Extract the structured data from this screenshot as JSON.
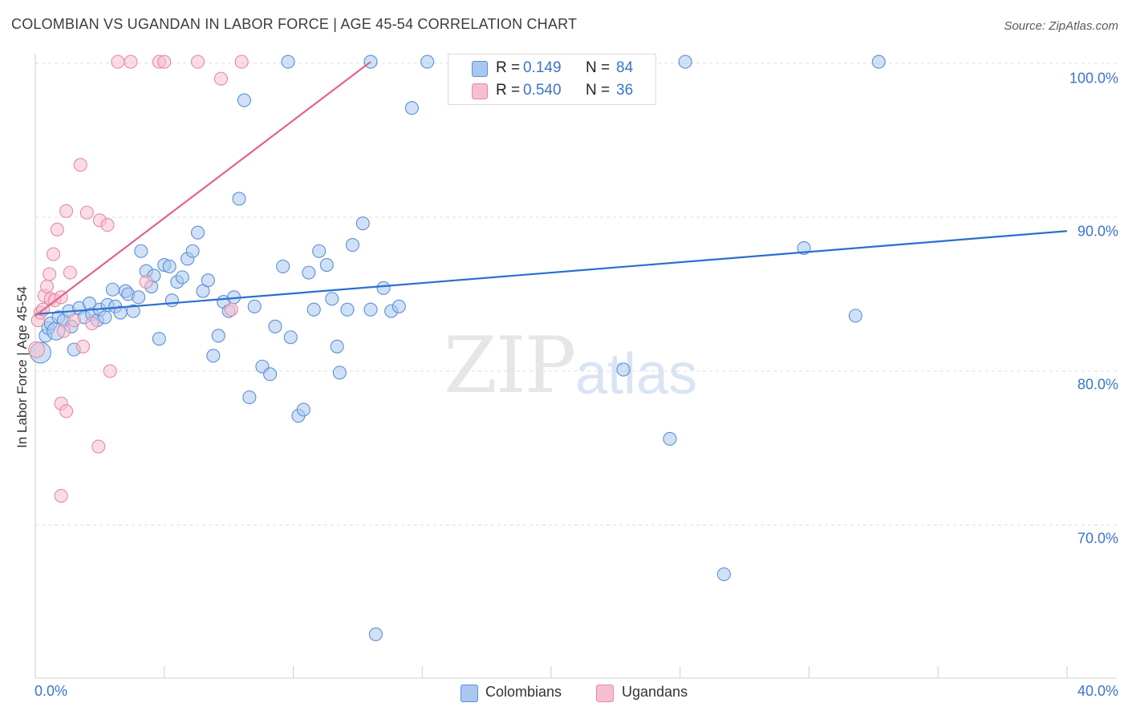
{
  "title": "COLOMBIAN VS UGANDAN IN LABOR FORCE | AGE 45-54 CORRELATION CHART",
  "source": "Source: ZipAtlas.com",
  "watermark": {
    "zip": "ZIP",
    "atlas": "atlas"
  },
  "colors": {
    "blue_fill": "#a9c8ef",
    "blue_stroke": "#5b8fd6",
    "blue_line": "#2b6fcf",
    "pink_fill": "#f6bfcf",
    "pink_stroke": "#e58aa5",
    "pink_line": "#e2628b",
    "grid": "#dedede",
    "tick_text": "#3b74c9"
  },
  "legend_top": [
    {
      "r_label": "R =",
      "r_value": "0.149",
      "n_label": "N =",
      "n_value": "84"
    },
    {
      "r_label": "R =",
      "r_value": "0.540",
      "n_label": "N =",
      "n_value": "36"
    }
  ],
  "legend_bottom": [
    "Colombians",
    "Ugandans"
  ],
  "chart_data": {
    "type": "scatter",
    "title": "COLOMBIAN VS UGANDAN IN LABOR FORCE | AGE 45-54 CORRELATION CHART",
    "xlabel": "",
    "ylabel": "In Labor Force | Age 45-54",
    "xlim": [
      0,
      40
    ],
    "ylim": [
      62,
      101.5
    ],
    "x_tick_labels": [
      "0.0%",
      "40.0%"
    ],
    "y_ticks": [
      70,
      80,
      90,
      100
    ],
    "y_tick_labels": [
      "70.0%",
      "80.0%",
      "90.0%",
      "100.0%"
    ],
    "grid": "horizontal dashed",
    "legend_position": "top-center",
    "series": [
      {
        "name": "Colombians",
        "r": 0.149,
        "n": 84,
        "trend": {
          "x": [
            0,
            40
          ],
          "y": [
            83.7,
            89.1
          ]
        },
        "points": [
          [
            0.2,
            81.2
          ],
          [
            0.4,
            82.3
          ],
          [
            0.5,
            82.8
          ],
          [
            0.6,
            83.1
          ],
          [
            0.8,
            82.6
          ],
          [
            0.9,
            83.5
          ],
          [
            1.1,
            83.3
          ],
          [
            1.3,
            83.9
          ],
          [
            1.4,
            82.9
          ],
          [
            1.5,
            81.4
          ],
          [
            1.7,
            84.1
          ],
          [
            1.9,
            83.5
          ],
          [
            2.1,
            84.4
          ],
          [
            2.2,
            83.7
          ],
          [
            2.4,
            83.3
          ],
          [
            2.5,
            84.0
          ],
          [
            2.7,
            83.5
          ],
          [
            2.8,
            84.3
          ],
          [
            3.0,
            85.3
          ],
          [
            3.1,
            84.2
          ],
          [
            3.3,
            83.8
          ],
          [
            3.5,
            85.2
          ],
          [
            3.6,
            85.0
          ],
          [
            3.8,
            83.9
          ],
          [
            4.0,
            84.8
          ],
          [
            4.1,
            87.8
          ],
          [
            4.3,
            86.5
          ],
          [
            4.5,
            85.5
          ],
          [
            4.6,
            86.2
          ],
          [
            4.8,
            82.1
          ],
          [
            5.0,
            86.9
          ],
          [
            5.2,
            86.8
          ],
          [
            5.3,
            84.6
          ],
          [
            5.5,
            85.8
          ],
          [
            5.7,
            86.1
          ],
          [
            5.9,
            87.3
          ],
          [
            6.1,
            87.8
          ],
          [
            6.3,
            89.0
          ],
          [
            6.5,
            85.2
          ],
          [
            6.7,
            85.9
          ],
          [
            6.9,
            81.0
          ],
          [
            7.1,
            82.3
          ],
          [
            7.3,
            84.5
          ],
          [
            7.5,
            83.9
          ],
          [
            7.7,
            84.8
          ],
          [
            7.9,
            91.2
          ],
          [
            8.1,
            97.6
          ],
          [
            8.3,
            78.3
          ],
          [
            8.5,
            84.2
          ],
          [
            8.8,
            80.3
          ],
          [
            9.1,
            79.8
          ],
          [
            9.3,
            82.9
          ],
          [
            9.6,
            86.8
          ],
          [
            9.9,
            82.2
          ],
          [
            10.2,
            77.1
          ],
          [
            10.4,
            77.5
          ],
          [
            10.6,
            86.4
          ],
          [
            10.8,
            84.0
          ],
          [
            11.0,
            87.8
          ],
          [
            11.3,
            86.9
          ],
          [
            11.5,
            84.7
          ],
          [
            11.7,
            81.6
          ],
          [
            11.8,
            79.9
          ],
          [
            12.1,
            84.0
          ],
          [
            12.3,
            88.2
          ],
          [
            12.7,
            89.6
          ],
          [
            13.0,
            84.0
          ],
          [
            13.2,
            62.9
          ],
          [
            13.5,
            85.4
          ],
          [
            13.8,
            83.9
          ],
          [
            14.1,
            84.2
          ],
          [
            14.6,
            97.1
          ],
          [
            9.8,
            100.1
          ],
          [
            13.0,
            100.1
          ],
          [
            15.2,
            100.1
          ],
          [
            16.4,
            100.1
          ],
          [
            17.8,
            100.1
          ],
          [
            22.8,
            80.1
          ],
          [
            24.6,
            75.6
          ],
          [
            25.2,
            100.1
          ],
          [
            26.7,
            66.8
          ],
          [
            29.8,
            88.0
          ],
          [
            31.8,
            83.6
          ],
          [
            32.7,
            100.1
          ]
        ]
      },
      {
        "name": "Ugandans",
        "r": 0.54,
        "n": 36,
        "trend": {
          "x": [
            0,
            13
          ],
          "y": [
            83.6,
            100.1
          ]
        },
        "points": [
          [
            0.05,
            81.4
          ],
          [
            0.1,
            83.3
          ],
          [
            0.2,
            83.8
          ],
          [
            0.3,
            84.0
          ],
          [
            0.35,
            84.9
          ],
          [
            0.45,
            85.5
          ],
          [
            0.55,
            86.3
          ],
          [
            0.6,
            84.7
          ],
          [
            0.7,
            87.6
          ],
          [
            0.75,
            84.6
          ],
          [
            0.85,
            89.2
          ],
          [
            1.0,
            84.8
          ],
          [
            1.1,
            82.6
          ],
          [
            1.2,
            90.4
          ],
          [
            1.35,
            86.4
          ],
          [
            1.5,
            83.3
          ],
          [
            1.75,
            93.4
          ],
          [
            1.85,
            81.6
          ],
          [
            2.0,
            90.3
          ],
          [
            2.2,
            83.1
          ],
          [
            2.5,
            89.8
          ],
          [
            2.8,
            89.5
          ],
          [
            2.9,
            80.0
          ],
          [
            3.2,
            100.1
          ],
          [
            3.7,
            100.1
          ],
          [
            4.3,
            85.8
          ],
          [
            4.8,
            100.1
          ],
          [
            5.0,
            100.1
          ],
          [
            6.3,
            100.1
          ],
          [
            7.2,
            99.0
          ],
          [
            8.0,
            100.1
          ],
          [
            1.0,
            77.9
          ],
          [
            1.2,
            77.4
          ],
          [
            2.45,
            75.1
          ],
          [
            1.0,
            71.9
          ],
          [
            7.6,
            84.0
          ]
        ]
      }
    ]
  }
}
